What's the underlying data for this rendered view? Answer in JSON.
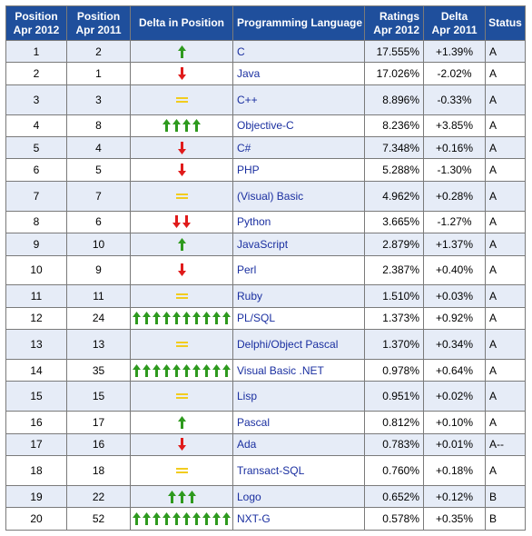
{
  "headers": {
    "pos2012": [
      "Position",
      "Apr 2012"
    ],
    "pos2011": [
      "Position",
      "Apr 2011"
    ],
    "delta_position": "Delta in Position",
    "language": "Programming Language",
    "ratings": [
      "Ratings",
      "Apr 2012"
    ],
    "delta": [
      "Delta",
      "Apr 2011"
    ],
    "status": "Status"
  },
  "colors": {
    "header_bg": "#1f4f9c",
    "up_arrow": "#2e9a1e",
    "down_arrow": "#e01b1b",
    "same": "#f2cc1e",
    "language_link": "#1a2fa0"
  },
  "icons": {
    "up": "green-up-arrow-icon",
    "down": "red-down-arrow-icon",
    "same": "yellow-equals-icon"
  },
  "rows": [
    {
      "pos2012": "1",
      "pos2011": "2",
      "trend": "up",
      "arrows": 1,
      "language": "C",
      "rating": "17.555%",
      "delta": "+1.39%",
      "status": "A"
    },
    {
      "pos2012": "2",
      "pos2011": "1",
      "trend": "down",
      "arrows": 1,
      "language": "Java",
      "rating": "17.026%",
      "delta": "-2.02%",
      "status": "A"
    },
    {
      "pos2012": "3",
      "pos2011": "3",
      "trend": "same",
      "arrows": 1,
      "language": "C++",
      "rating": "8.896%",
      "delta": "-0.33%",
      "status": "A"
    },
    {
      "pos2012": "4",
      "pos2011": "8",
      "trend": "up",
      "arrows": 4,
      "language": "Objective-C",
      "rating": "8.236%",
      "delta": "+3.85%",
      "status": "A"
    },
    {
      "pos2012": "5",
      "pos2011": "4",
      "trend": "down",
      "arrows": 1,
      "language": "C#",
      "rating": "7.348%",
      "delta": "+0.16%",
      "status": "A"
    },
    {
      "pos2012": "6",
      "pos2011": "5",
      "trend": "down",
      "arrows": 1,
      "language": "PHP",
      "rating": "5.288%",
      "delta": "-1.30%",
      "status": "A"
    },
    {
      "pos2012": "7",
      "pos2011": "7",
      "trend": "same",
      "arrows": 1,
      "language": "(Visual) Basic",
      "rating": "4.962%",
      "delta": "+0.28%",
      "status": "A"
    },
    {
      "pos2012": "8",
      "pos2011": "6",
      "trend": "down",
      "arrows": 2,
      "language": "Python",
      "rating": "3.665%",
      "delta": "-1.27%",
      "status": "A"
    },
    {
      "pos2012": "9",
      "pos2011": "10",
      "trend": "up",
      "arrows": 1,
      "language": "JavaScript",
      "rating": "2.879%",
      "delta": "+1.37%",
      "status": "A"
    },
    {
      "pos2012": "10",
      "pos2011": "9",
      "trend": "down",
      "arrows": 1,
      "language": "Perl",
      "rating": "2.387%",
      "delta": "+0.40%",
      "status": "A"
    },
    {
      "pos2012": "11",
      "pos2011": "11",
      "trend": "same",
      "arrows": 1,
      "language": "Ruby",
      "rating": "1.510%",
      "delta": "+0.03%",
      "status": "A"
    },
    {
      "pos2012": "12",
      "pos2011": "24",
      "trend": "up",
      "arrows": 10,
      "language": "PL/SQL",
      "rating": "1.373%",
      "delta": "+0.92%",
      "status": "A"
    },
    {
      "pos2012": "13",
      "pos2011": "13",
      "trend": "same",
      "arrows": 1,
      "language": "Delphi/Object Pascal",
      "rating": "1.370%",
      "delta": "+0.34%",
      "status": "A"
    },
    {
      "pos2012": "14",
      "pos2011": "35",
      "trend": "up",
      "arrows": 10,
      "language": "Visual Basic .NET",
      "rating": "0.978%",
      "delta": "+0.64%",
      "status": "A"
    },
    {
      "pos2012": "15",
      "pos2011": "15",
      "trend": "same",
      "arrows": 1,
      "language": "Lisp",
      "rating": "0.951%",
      "delta": "+0.02%",
      "status": "A"
    },
    {
      "pos2012": "16",
      "pos2011": "17",
      "trend": "up",
      "arrows": 1,
      "language": "Pascal",
      "rating": "0.812%",
      "delta": "+0.10%",
      "status": "A"
    },
    {
      "pos2012": "17",
      "pos2011": "16",
      "trend": "down",
      "arrows": 1,
      "language": "Ada",
      "rating": "0.783%",
      "delta": "+0.01%",
      "status": "A--"
    },
    {
      "pos2012": "18",
      "pos2011": "18",
      "trend": "same",
      "arrows": 1,
      "language": "Transact-SQL",
      "rating": "0.760%",
      "delta": "+0.18%",
      "status": "A"
    },
    {
      "pos2012": "19",
      "pos2011": "22",
      "trend": "up",
      "arrows": 3,
      "language": "Logo",
      "rating": "0.652%",
      "delta": "+0.12%",
      "status": "B"
    },
    {
      "pos2012": "20",
      "pos2011": "52",
      "trend": "up",
      "arrows": 10,
      "language": "NXT-G",
      "rating": "0.578%",
      "delta": "+0.35%",
      "status": "B"
    }
  ]
}
